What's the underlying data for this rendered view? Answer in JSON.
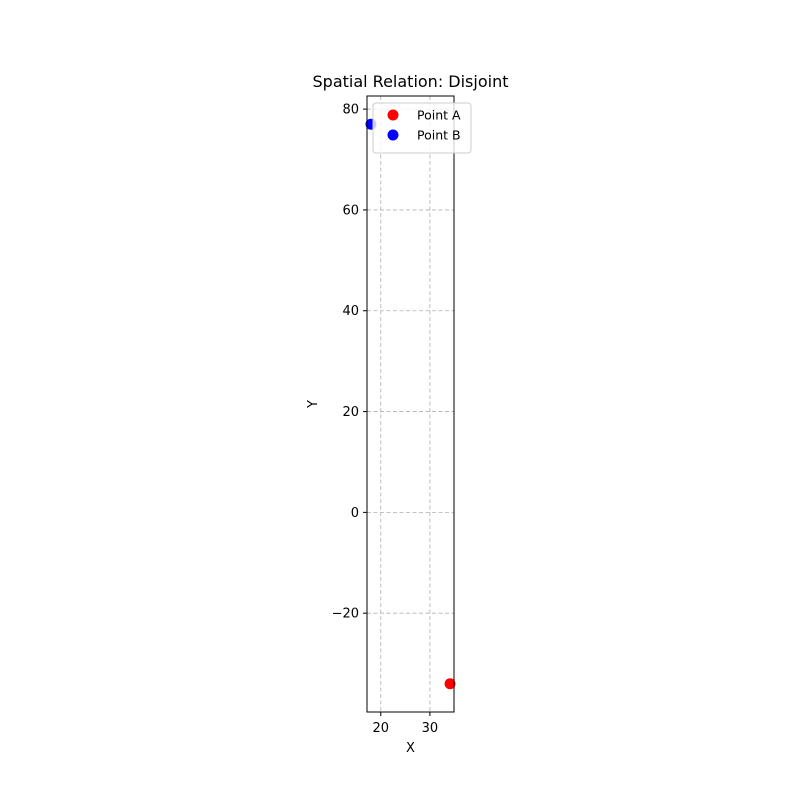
{
  "chart_data": {
    "type": "scatter",
    "title": "Spatial Relation: Disjoint",
    "xlabel": "X",
    "ylabel": "Y",
    "xlim": [
      17.2,
      34.9
    ],
    "ylim": [
      -39.6,
      82.6
    ],
    "xticks": [
      20,
      30
    ],
    "yticks": [
      -20,
      0,
      20,
      40,
      60,
      80
    ],
    "xtick_labels": [
      "20",
      "30"
    ],
    "ytick_labels": [
      "−20",
      "0",
      "20",
      "40",
      "60",
      "80"
    ],
    "grid": true,
    "legend_position": "top-right",
    "series": [
      {
        "name": "Point A",
        "color": "#ff0000",
        "points": [
          {
            "x": 34.1,
            "y": -34.0
          }
        ]
      },
      {
        "name": "Point B",
        "color": "#0000ff",
        "points": [
          {
            "x": 18.0,
            "y": 77.0
          }
        ]
      }
    ]
  }
}
